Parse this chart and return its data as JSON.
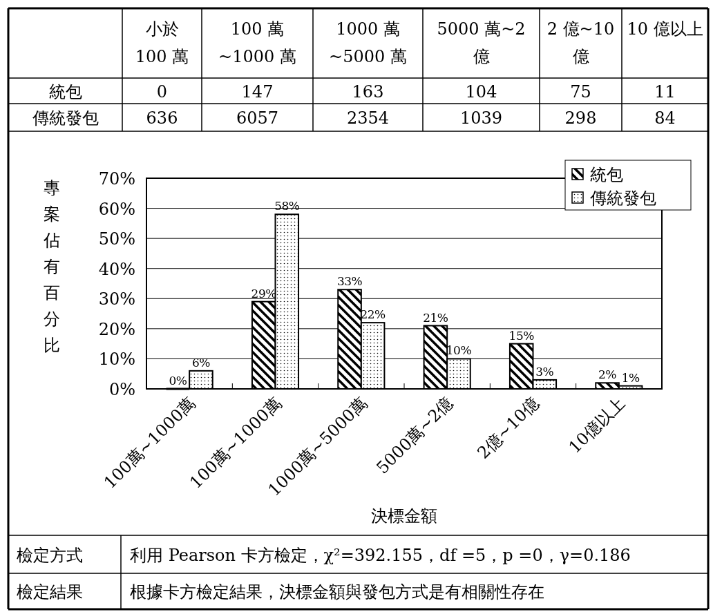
{
  "chart_data": [
    {
      "type": "other",
      "categories": [
        "小於\n100 萬",
        "100 萬\n~1000 萬",
        "1000 萬\n~5000 萬",
        "5000 萬~2\n億",
        "2 億~10\n億",
        "10 億以上"
      ],
      "data_labels": true,
      "series": [
        {
          "name": "統包",
          "values": [
            0,
            147,
            163,
            104,
            75,
            11
          ]
        },
        {
          "name": "傳統發包",
          "values": [
            636,
            6057,
            2354,
            1039,
            298,
            84
          ]
        }
      ]
    },
    {
      "type": "bar",
      "xlabel": "決標金額",
      "ylabel": "專案佔有百分比",
      "categories": [
        "100萬~1000萬",
        "100萬~1000萬",
        "1000萬~5000萬",
        "5000萬~2億",
        "2億~10億",
        "10億以上"
      ],
      "series": [
        {
          "name": "統包",
          "color": "#000000",
          "values": [
            0,
            29,
            33,
            21,
            15,
            2
          ],
          "value_labels": [
            "0%",
            "29%",
            "33%",
            "21%",
            "15%",
            "2%"
          ]
        },
        {
          "name": "傳統發包",
          "color": "#000000",
          "values": [
            6,
            58,
            22,
            10,
            3,
            1
          ],
          "value_labels": [
            "6%",
            "58%",
            "22%",
            "10%",
            "3%",
            "1%"
          ]
        }
      ],
      "ylim": [
        0,
        70
      ],
      "yticks": [
        {
          "value": 0,
          "label": "0%"
        },
        {
          "value": 10,
          "label": "10%"
        },
        {
          "value": 20,
          "label": "20%"
        },
        {
          "value": 30,
          "label": "30%"
        },
        {
          "value": 40,
          "label": "40%"
        },
        {
          "value": 50,
          "label": "50%"
        },
        {
          "value": 60,
          "label": "60%"
        },
        {
          "value": 70,
          "label": "70%"
        }
      ],
      "grid": "y",
      "legend": "top right"
    },
    {
      "type": "other",
      "annotations": [
        "檢定方式",
        "利用 Pearson 卡方檢定，χ²=392.155，df =5，p =0，γ=0.186",
        "檢定結果",
        "根據卡方檢定結果，決標金額與發包方式是有相關性存在"
      ]
    }
  ]
}
